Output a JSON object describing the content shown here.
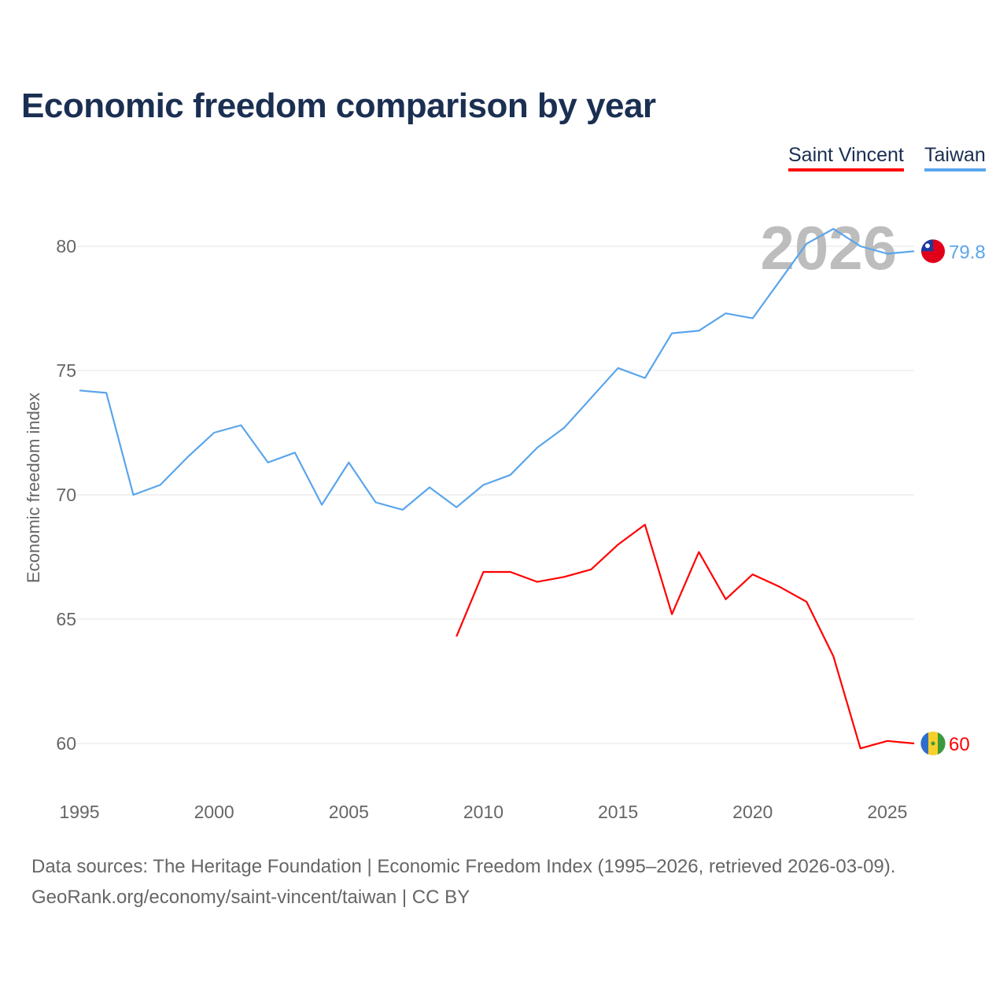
{
  "chart_data": {
    "type": "line",
    "title": "Economic freedom comparison by year",
    "xlabel": "",
    "ylabel": "Economic freedom index",
    "ylim": [
      57.9,
      82.5
    ],
    "xlim": [
      1995,
      2026
    ],
    "yticks": [
      60,
      65,
      70,
      75,
      80
    ],
    "xticks": [
      1995,
      2000,
      2005,
      2010,
      2015,
      2020,
      2025
    ],
    "grid": true,
    "legend_placement": "top-right",
    "watermark_year": "2026",
    "series": [
      {
        "name": "Saint Vincent",
        "color": "#ff0000",
        "end_label": "60",
        "x": [
          2009,
          2010,
          2011,
          2012,
          2013,
          2014,
          2015,
          2016,
          2017,
          2018,
          2019,
          2020,
          2021,
          2022,
          2023,
          2024,
          2025,
          2026
        ],
        "values": [
          64.3,
          66.9,
          66.9,
          66.5,
          66.7,
          67.0,
          68.0,
          68.8,
          65.2,
          67.7,
          65.8,
          66.8,
          66.3,
          65.7,
          63.5,
          59.8,
          60.1,
          60.0
        ]
      },
      {
        "name": "Taiwan",
        "color": "#5aa5ec",
        "end_label": "79.8",
        "x": [
          1995,
          1996,
          1997,
          1998,
          1999,
          2000,
          2001,
          2002,
          2003,
          2004,
          2005,
          2006,
          2007,
          2008,
          2009,
          2010,
          2011,
          2012,
          2013,
          2014,
          2015,
          2016,
          2017,
          2018,
          2019,
          2020,
          2021,
          2022,
          2023,
          2024,
          2025,
          2026
        ],
        "values": [
          74.2,
          74.1,
          70.0,
          70.4,
          71.5,
          72.5,
          72.8,
          71.3,
          71.7,
          69.6,
          71.3,
          69.7,
          69.4,
          70.3,
          69.5,
          70.4,
          70.8,
          71.9,
          72.7,
          73.9,
          75.1,
          74.7,
          76.5,
          76.6,
          77.3,
          77.1,
          78.6,
          80.1,
          80.7,
          80.0,
          79.7,
          79.8
        ]
      }
    ]
  },
  "footer": {
    "line1": "Data sources: The Heritage Foundation | Economic Freedom Index (1995–2026, retrieved 2026-03-09).",
    "line2": "GeoRank.org/economy/saint-vincent/taiwan | CC BY"
  }
}
